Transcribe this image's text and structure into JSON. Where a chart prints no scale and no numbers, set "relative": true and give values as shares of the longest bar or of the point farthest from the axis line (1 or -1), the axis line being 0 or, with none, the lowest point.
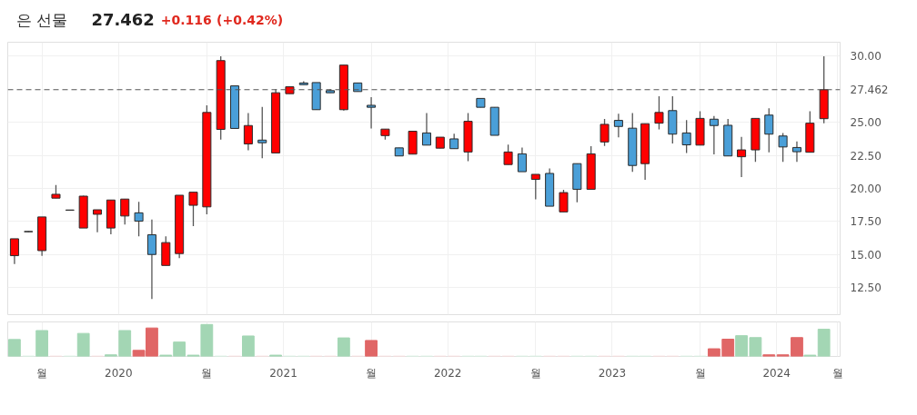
{
  "chart_data": [
    {
      "type": "candlestick",
      "title": "은 선물",
      "annotations": [
        "27.462",
        "+0.116",
        "(+0.42%)"
      ],
      "x": [
        "2019-05-15",
        "2019-06-15",
        "2019-07-15",
        "2019-08-15",
        "2019-09-15",
        "2019-10-15",
        "2019-11-15",
        "2019-12-15",
        "2020-01-15",
        "2020-02-15",
        "2020-03-15",
        "2020-04-15",
        "2020-05-15",
        "2020-06-15",
        "2020-07-15",
        "2020-08-15",
        "2020-09-15",
        "2020-10-15",
        "2020-11-15",
        "2020-12-15",
        "2021-01-15",
        "2021-02-15",
        "2021-03-15",
        "2021-04-15",
        "2021-05-15",
        "2021-06-15",
        "2021-07-15",
        "2021-08-15",
        "2021-09-15",
        "2021-10-15",
        "2021-11-15",
        "2021-12-15",
        "2022-01-15",
        "2022-02-15",
        "2022-03-15",
        "2022-04-15",
        "2022-05-15",
        "2022-06-15",
        "2022-07-15",
        "2022-08-15",
        "2022-09-15",
        "2022-10-15",
        "2022-11-15",
        "2022-12-15",
        "2023-01-15",
        "2023-02-15",
        "2023-03-15",
        "2023-04-15",
        "2023-05-15",
        "2023-06-15",
        "2023-07-15",
        "2023-08-15",
        "2023-09-15",
        "2023-10-15",
        "2023-11-15",
        "2023-12-15",
        "2024-01-15",
        "2024-02-15",
        "2024-03-15",
        "2024-04-15"
      ],
      "ohlc": [
        [
          14.91,
          16.19,
          14.28,
          16.19
        ],
        [
          16.72,
          16.75,
          16.7,
          16.74
        ],
        [
          15.29,
          17.84,
          14.89,
          17.84
        ],
        [
          19.26,
          20.25,
          19.26,
          19.55
        ],
        [
          18.35,
          18.38,
          18.34,
          18.36
        ],
        [
          17.0,
          19.45,
          17.0,
          19.41
        ],
        [
          18.04,
          18.38,
          16.69,
          18.38
        ],
        [
          17.0,
          19.12,
          16.53,
          19.12
        ],
        [
          17.91,
          19.19,
          17.27,
          19.19
        ],
        [
          18.15,
          18.99,
          16.37,
          17.52
        ],
        [
          16.49,
          17.64,
          11.64,
          15.0
        ],
        [
          14.17,
          16.37,
          14.17,
          15.9
        ],
        [
          15.07,
          19.48,
          14.73,
          19.48
        ],
        [
          18.72,
          19.71,
          17.14,
          19.71
        ],
        [
          18.6,
          26.28,
          18.04,
          25.74
        ],
        [
          24.46,
          29.98,
          23.69,
          29.66
        ],
        [
          27.75,
          27.75,
          24.53,
          24.53
        ],
        [
          23.36,
          25.7,
          22.88,
          24.75
        ],
        [
          23.65,
          26.15,
          22.27,
          23.45
        ],
        [
          22.68,
          27.5,
          22.68,
          27.23
        ],
        [
          27.16,
          27.68,
          27.16,
          27.68
        ],
        [
          27.97,
          28.09,
          27.84,
          27.84
        ],
        [
          28.0,
          28.0,
          25.95,
          25.95
        ],
        [
          27.39,
          27.5,
          27.23,
          27.23
        ],
        [
          25.95,
          29.32,
          25.88,
          29.32
        ],
        [
          27.97,
          27.97,
          27.32,
          27.32
        ],
        [
          26.28,
          26.89,
          24.53,
          26.13
        ],
        [
          23.99,
          24.48,
          23.69,
          24.48
        ],
        [
          23.06,
          23.06,
          22.45,
          22.45
        ],
        [
          22.59,
          24.32,
          22.59,
          24.32
        ],
        [
          24.19,
          25.7,
          23.27,
          23.27
        ],
        [
          23.04,
          23.87,
          23.04,
          23.87
        ],
        [
          23.74,
          24.14,
          23.0,
          23.0
        ],
        [
          22.75,
          25.7,
          22.05,
          25.07
        ],
        [
          26.8,
          26.8,
          26.13,
          26.13
        ],
        [
          26.13,
          26.13,
          24.01,
          24.01
        ],
        [
          21.8,
          23.31,
          21.8,
          22.75
        ],
        [
          22.61,
          23.09,
          21.26,
          21.26
        ],
        [
          20.68,
          21.06,
          19.17,
          21.06
        ],
        [
          21.13,
          21.51,
          18.65,
          18.65
        ],
        [
          18.22,
          19.89,
          18.22,
          19.68
        ],
        [
          21.87,
          21.87,
          18.94,
          19.93
        ],
        [
          19.93,
          23.18,
          19.93,
          22.61
        ],
        [
          23.51,
          25.25,
          23.2,
          24.84
        ],
        [
          25.14,
          25.65,
          23.85,
          24.68
        ],
        [
          24.55,
          25.7,
          21.24,
          21.73
        ],
        [
          21.87,
          24.89,
          20.65,
          24.89
        ],
        [
          24.93,
          26.96,
          24.46,
          25.74
        ],
        [
          25.88,
          26.96,
          23.4,
          24.1
        ],
        [
          24.19,
          25.16,
          22.68,
          23.29
        ],
        [
          23.27,
          25.83,
          23.27,
          25.29
        ],
        [
          25.23,
          25.47,
          22.57,
          24.75
        ],
        [
          24.77,
          25.25,
          22.45,
          22.45
        ],
        [
          22.39,
          23.9,
          20.86,
          22.91
        ],
        [
          22.91,
          25.29,
          22.0,
          25.29
        ],
        [
          25.54,
          26.06,
          22.73,
          24.1
        ],
        [
          23.96,
          24.19,
          22.0,
          23.13
        ],
        [
          23.09,
          23.54,
          22.0,
          22.77
        ],
        [
          22.73,
          25.83,
          22.73,
          24.93
        ],
        [
          25.27,
          29.98,
          24.93,
          27.46
        ]
      ],
      "colors": [
        "#ff0000",
        "#808080",
        "#ff0000",
        "#ff0000",
        "#808080",
        "#ff0000",
        "#ff0000",
        "#ff0000",
        "#ff0000",
        "#4a9fd8",
        "#4a9fd8",
        "#ff0000",
        "#ff0000",
        "#ff0000",
        "#ff0000",
        "#ff0000",
        "#4a9fd8",
        "#ff0000",
        "#4a9fd8",
        "#ff0000",
        "#ff0000",
        "#4a9fd8",
        "#4a9fd8",
        "#4a9fd8",
        "#ff0000",
        "#4a9fd8",
        "#4a9fd8",
        "#ff0000",
        "#4a9fd8",
        "#ff0000",
        "#4a9fd8",
        "#ff0000",
        "#4a9fd8",
        "#ff0000",
        "#4a9fd8",
        "#4a9fd8",
        "#ff0000",
        "#4a9fd8",
        "#ff0000",
        "#4a9fd8",
        "#ff0000",
        "#4a9fd8",
        "#ff0000",
        "#ff0000",
        "#4a9fd8",
        "#4a9fd8",
        "#ff0000",
        "#ff0000",
        "#4a9fd8",
        "#4a9fd8",
        "#ff0000",
        "#4a9fd8",
        "#4a9fd8",
        "#ff0000",
        "#ff0000",
        "#4a9fd8",
        "#4a9fd8",
        "#4a9fd8",
        "#ff0000",
        "#ff0000"
      ],
      "xlim": [
        "2019-04-30",
        "2024-05-21"
      ],
      "xticks": [
        {
          "value": "2019-07-15",
          "label": null
        },
        {
          "value": "2020",
          "label": null
        },
        {
          "value": "2020-07-15",
          "label": null
        },
        {
          "value": "2021",
          "label": null
        },
        {
          "value": "2021-07-15",
          "label": null
        },
        {
          "value": "2022",
          "label": null
        },
        {
          "value": "2022-07-15",
          "label": null
        },
        {
          "value": "2023",
          "label": null
        },
        {
          "value": "2023-07-15",
          "label": null
        },
        {
          "value": "2024",
          "label": null
        },
        {
          "value": "2024-05-15",
          "label": null
        }
      ],
      "ylim": [
        10.45,
        31.05
      ],
      "yticks": [
        {
          "value": 12.5,
          "label": "12.50"
        },
        {
          "value": 15,
          "label": "15.00"
        },
        {
          "value": 17.5,
          "label": "17.50"
        },
        {
          "value": 20,
          "label": "20.00"
        },
        {
          "value": 22.5,
          "label": "22.50"
        },
        {
          "value": 25,
          "label": "25.00"
        },
        {
          "value": 30,
          "label": "30.00"
        }
      ],
      "tick_labels": "y",
      "grid": true,
      "ref_lines": [
        {
          "axis": "y",
          "value": 27.462,
          "label": "27.462",
          "color": "#555555",
          "line_style": "dashed"
        }
      ]
    },
    {
      "type": "bar",
      "relative": true,
      "x": [
        "2019-05-15",
        "2019-06-15",
        "2019-07-15",
        "2019-08-15",
        "2019-09-15",
        "2019-10-15",
        "2019-11-15",
        "2019-12-15",
        "2020-01-15",
        "2020-02-15",
        "2020-03-15",
        "2020-04-15",
        "2020-05-15",
        "2020-06-15",
        "2020-07-15",
        "2020-08-15",
        "2020-09-15",
        "2020-10-15",
        "2020-11-15",
        "2020-12-15",
        "2021-01-15",
        "2021-02-15",
        "2021-03-15",
        "2021-04-15",
        "2021-05-15",
        "2021-06-15",
        "2021-07-15",
        "2021-08-15",
        "2021-09-15",
        "2021-10-15",
        "2021-11-15",
        "2021-12-15",
        "2022-01-15",
        "2022-02-15",
        "2022-03-15",
        "2022-04-15",
        "2022-05-15",
        "2022-06-15",
        "2022-07-15",
        "2022-08-15",
        "2022-09-15",
        "2022-10-15",
        "2022-11-15",
        "2022-12-15",
        "2023-01-15",
        "2023-02-15",
        "2023-03-15",
        "2023-04-15",
        "2023-05-15",
        "2023-06-15",
        "2023-07-15",
        "2023-08-15",
        "2023-09-15",
        "2023-10-15",
        "2023-11-15",
        "2023-12-15",
        "2024-01-15",
        "2024-02-15",
        "2024-03-15",
        "2024-04-15"
      ],
      "values": [
        0.53,
        0.01,
        0.81,
        0.01,
        0.01,
        0.72,
        0.01,
        0.05,
        0.81,
        0.19,
        0.89,
        0.04,
        0.45,
        0.04,
        1.0,
        0.01,
        0.01,
        0.64,
        0.01,
        0.04,
        0.01,
        0.01,
        0.01,
        0.01,
        0.58,
        0.01,
        0.5,
        0.01,
        0.01,
        0.01,
        0.01,
        0.01,
        0.01,
        0.01,
        0.01,
        0.01,
        0.01,
        0.01,
        0.01,
        0.01,
        0.01,
        0.01,
        0.01,
        0.01,
        0.01,
        0.01,
        0.01,
        0.01,
        0.01,
        0.01,
        0.01,
        0.24,
        0.54,
        0.65,
        0.59,
        0.05,
        0.05,
        0.59,
        0.04,
        0.85
      ],
      "colors": [
        "#a3d6b4",
        "#d9efe1",
        "#a3d6b4",
        "#f5dede",
        "#d9efe1",
        "#a3d6b4",
        "#f5dede",
        "#a3d6b4",
        "#a3d6b4",
        "#e06666",
        "#e06666",
        "#a3d6b4",
        "#a3d6b4",
        "#a3d6b4",
        "#a3d6b4",
        "#d9efe1",
        "#f5dede",
        "#a3d6b4",
        "#f5dede",
        "#a3d6b4",
        "#d9efe1",
        "#d9efe1",
        "#f5dede",
        "#f5dede",
        "#a3d6b4",
        "#f5dede",
        "#e06666",
        "#f5dede",
        "#f5dede",
        "#d9efe1",
        "#d9efe1",
        "#f5dede",
        "#f5dede",
        "#d9efe1",
        "#d9efe1",
        "#f5dede",
        "#f5dede",
        "#d9efe1",
        "#d9efe1",
        "#f5dede",
        "#f5dede",
        "#d9efe1",
        "#d9efe1",
        "#f5dede",
        "#f5dede",
        "#d9efe1",
        "#d9efe1",
        "#f5dede",
        "#f5dede",
        "#d9efe1",
        "#d9efe1",
        "#e06666",
        "#e06666",
        "#a3d6b4",
        "#a3d6b4",
        "#e06666",
        "#e06666",
        "#e06666",
        "#a3d6b4",
        "#a3d6b4"
      ],
      "xlim": [
        "2019-04-30",
        "2024-05-21"
      ],
      "xticks": [
        {
          "value": "2019-07-15",
          "label": "월"
        },
        "2020",
        {
          "value": "2020-07-15",
          "label": "월"
        },
        "2021",
        {
          "value": "2021-07-15",
          "label": "월"
        },
        "2022",
        {
          "value": "2022-07-15",
          "label": "월"
        },
        "2023",
        {
          "value": "2023-07-15",
          "label": "월"
        },
        "2024",
        {
          "value": "2024-05-15",
          "label": "월"
        }
      ],
      "tick_labels": "x",
      "grid": "x"
    }
  ]
}
